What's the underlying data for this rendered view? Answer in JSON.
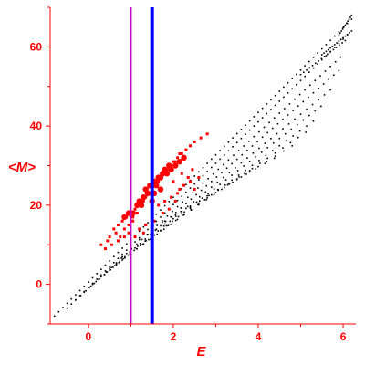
{
  "chart_data": {
    "type": "scatter",
    "title": "",
    "xlabel": "E",
    "ylabel": "<M>",
    "xlim": [
      -0.9,
      6.3
    ],
    "ylim": [
      -10,
      70
    ],
    "xticks": [
      0,
      2,
      4,
      6
    ],
    "yticks": [
      0,
      20,
      40,
      60
    ],
    "grid": false,
    "legend": "none",
    "colors": {
      "axis": "#ff0000",
      "black_points": "#000000",
      "red_points": "#ff0000",
      "magenta_line": "#cc00cc",
      "blue_line": "#0000ff"
    },
    "vertical_lines": [
      {
        "x": 1.0,
        "color": "#cc00cc"
      },
      {
        "x": 1.5,
        "color": "#0000ff"
      }
    ],
    "series": [
      {
        "color": "#000000",
        "bands": [
          {
            "x_start": -0.8,
            "x_end": 6.2,
            "y_start": -8,
            "y_end": 67,
            "step": 0.1
          },
          {
            "x_start": -0.5,
            "x_end": 6.1,
            "y_start": -6,
            "y_end": 63,
            "step": 0.1
          },
          {
            "x_start": -0.3,
            "x_end": 6.0,
            "y_start": -4,
            "y_end": 58,
            "step": 0.12
          },
          {
            "x_start": -0.1,
            "x_end": 5.9,
            "y_start": -2,
            "y_end": 54,
            "step": 0.12
          },
          {
            "x_start": 0.1,
            "x_end": 5.8,
            "y_start": 0,
            "y_end": 50,
            "step": 0.14
          },
          {
            "x_start": 0.3,
            "x_end": 5.6,
            "y_start": 2,
            "y_end": 46,
            "step": 0.14
          },
          {
            "x_start": 0.5,
            "x_end": 5.4,
            "y_start": 4,
            "y_end": 42,
            "step": 0.16
          },
          {
            "x_start": 0.8,
            "x_end": 5.2,
            "y_start": 7,
            "y_end": 39,
            "step": 0.18
          },
          {
            "x_start": 1.0,
            "x_end": 4.8,
            "y_start": 10,
            "y_end": 35,
            "step": 0.2
          },
          {
            "x_start": 1.3,
            "x_end": 4.4,
            "y_start": 13,
            "y_end": 32,
            "step": 0.22
          },
          {
            "x_start": 1.8,
            "x_end": 4.0,
            "y_start": 16,
            "y_end": 30,
            "step": 0.25
          },
          {
            "x_start": 5.9,
            "x_end": 6.2,
            "y_start": 63,
            "y_end": 68,
            "step": 0.03
          },
          {
            "x_start": 5.5,
            "x_end": 6.2,
            "y_start": 58,
            "y_end": 64,
            "step": 0.05
          },
          {
            "x_start": 5.0,
            "x_end": 6.1,
            "y_start": 53,
            "y_end": 62,
            "step": 0.07
          }
        ]
      },
      {
        "color": "#ff0000",
        "points": [
          [
            0.3,
            10
          ],
          [
            0.4,
            9
          ],
          [
            0.45,
            11
          ],
          [
            0.5,
            12
          ],
          [
            0.55,
            10
          ],
          [
            0.6,
            14
          ],
          [
            0.65,
            13
          ],
          [
            0.7,
            15
          ],
          [
            0.75,
            12
          ],
          [
            0.8,
            16
          ],
          [
            0.85,
            14
          ],
          [
            0.9,
            17
          ],
          [
            0.95,
            15
          ],
          [
            1.0,
            18
          ],
          [
            1.05,
            17
          ],
          [
            1.1,
            19
          ],
          [
            1.15,
            18
          ],
          [
            1.2,
            20
          ],
          [
            1.25,
            21
          ],
          [
            1.3,
            21
          ],
          [
            1.35,
            22
          ],
          [
            1.4,
            23
          ],
          [
            1.45,
            23
          ],
          [
            1.5,
            24
          ],
          [
            1.55,
            25
          ],
          [
            1.6,
            26
          ],
          [
            1.65,
            26
          ],
          [
            1.7,
            27
          ],
          [
            1.75,
            28
          ],
          [
            1.8,
            28
          ],
          [
            1.85,
            29
          ],
          [
            1.9,
            30
          ],
          [
            1.95,
            30
          ],
          [
            2.0,
            31
          ],
          [
            2.05,
            31
          ],
          [
            2.1,
            32
          ],
          [
            2.15,
            33
          ],
          [
            2.2,
            33
          ],
          [
            2.3,
            34
          ],
          [
            2.4,
            35
          ],
          [
            2.5,
            36
          ],
          [
            2.65,
            37
          ],
          [
            2.8,
            38
          ],
          [
            1.2,
            14
          ],
          [
            1.35,
            15
          ],
          [
            1.5,
            18
          ],
          [
            1.65,
            20
          ],
          [
            1.8,
            21
          ],
          [
            1.95,
            22
          ],
          [
            2.1,
            23
          ],
          [
            2.25,
            25
          ],
          [
            2.4,
            26
          ],
          [
            2.5,
            24
          ],
          [
            2.6,
            27
          ],
          [
            1.1,
            12
          ],
          [
            1.3,
            13
          ],
          [
            1.55,
            16
          ],
          [
            1.75,
            18
          ],
          [
            1.9,
            19
          ],
          [
            2.05,
            21
          ],
          [
            2.2,
            28
          ],
          [
            2.35,
            27
          ],
          [
            2.45,
            29
          ],
          [
            0.7,
            11
          ],
          [
            0.85,
            12
          ],
          [
            0.95,
            13
          ],
          [
            1.05,
            16
          ],
          [
            2.0,
            26
          ],
          [
            2.15,
            24
          ]
        ]
      },
      {
        "color": "#ff0000",
        "points": [
          [
            0.85,
            17
          ],
          [
            0.95,
            18
          ],
          [
            1.05,
            18
          ],
          [
            1.15,
            20
          ],
          [
            1.2,
            21
          ],
          [
            1.25,
            20
          ],
          [
            1.3,
            22
          ],
          [
            1.35,
            24
          ],
          [
            1.4,
            23
          ],
          [
            1.45,
            25
          ],
          [
            1.5,
            25
          ],
          [
            1.55,
            26
          ],
          [
            1.6,
            25
          ],
          [
            1.65,
            27
          ],
          [
            1.7,
            27
          ],
          [
            1.75,
            28
          ],
          [
            1.8,
            29
          ],
          [
            1.85,
            28
          ],
          [
            1.9,
            30
          ],
          [
            1.95,
            29
          ],
          [
            2.05,
            30
          ],
          [
            2.15,
            31
          ],
          [
            2.25,
            32
          ],
          [
            1.5,
            21
          ],
          [
            1.55,
            23
          ],
          [
            1.7,
            24
          ]
        ]
      }
    ]
  }
}
